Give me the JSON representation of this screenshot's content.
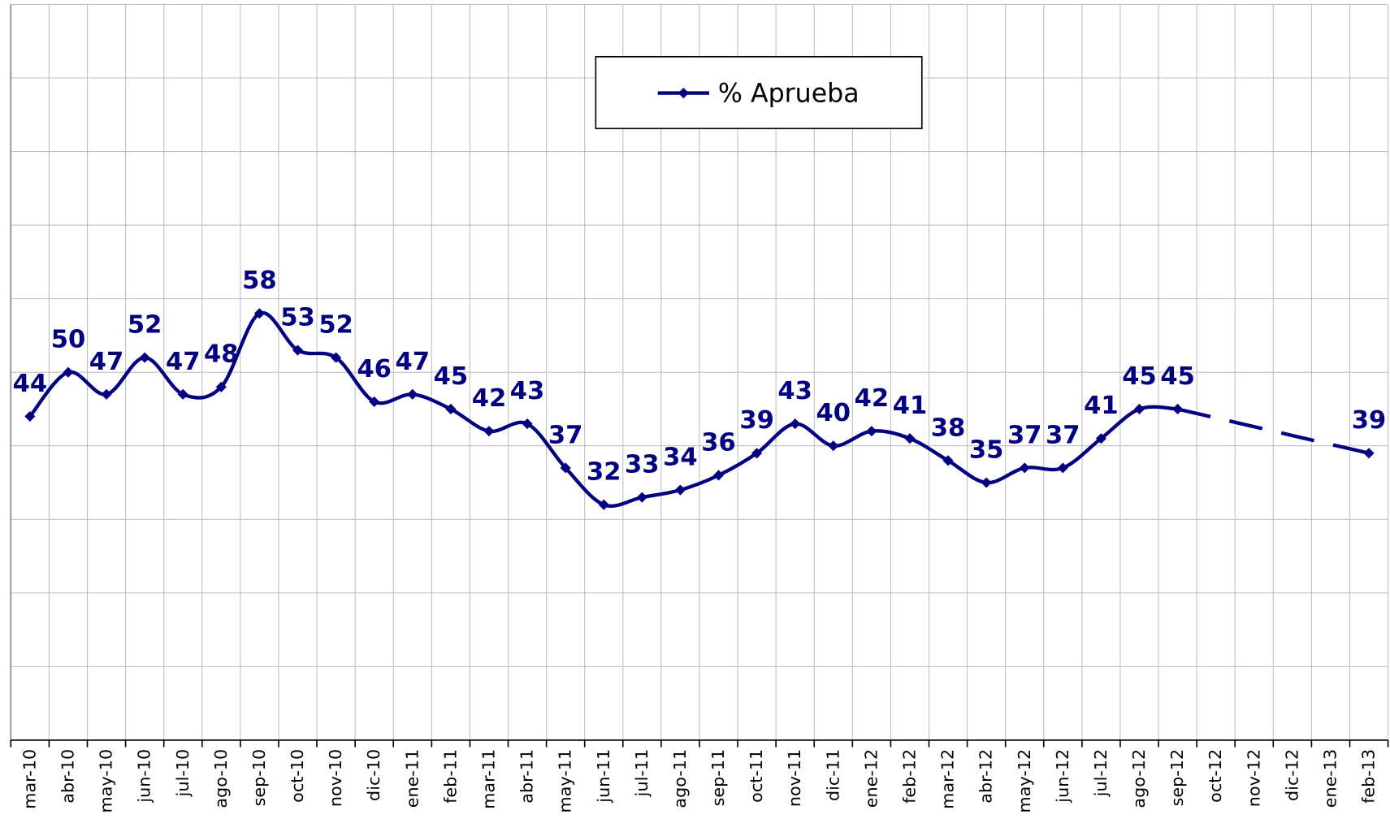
{
  "chart_data": {
    "type": "line",
    "categories": [
      "mar-10",
      "abr-10",
      "may-10",
      "jun-10",
      "jul-10",
      "ago-10",
      "sep-10",
      "oct-10",
      "nov-10",
      "dic-10",
      "ene-11",
      "feb-11",
      "mar-11",
      "abr-11",
      "may-11",
      "jun-11",
      "jul-11",
      "ago-11",
      "sep-11",
      "oct-11",
      "nov-11",
      "dic-11",
      "ene-12",
      "feb-12",
      "mar-12",
      "abr-12",
      "may-12",
      "jun-12",
      "jul-12",
      "ago-12",
      "sep-12",
      "oct-12",
      "nov-12",
      "dic-12",
      "ene-13",
      "feb-13"
    ],
    "series": [
      {
        "name": "% Aprueba",
        "color": "#000080",
        "values": [
          44,
          50,
          47,
          52,
          47,
          48,
          58,
          53,
          52,
          46,
          47,
          45,
          42,
          43,
          37,
          32,
          33,
          34,
          36,
          39,
          43,
          40,
          42,
          41,
          38,
          35,
          37,
          37,
          41,
          45,
          45,
          null,
          null,
          null,
          null,
          39
        ]
      }
    ],
    "ylim": [
      0,
      100
    ],
    "yticks": [
      0,
      10,
      20,
      30,
      40,
      50,
      60,
      70,
      80,
      90,
      100
    ],
    "grid": true,
    "legend": "top"
  }
}
